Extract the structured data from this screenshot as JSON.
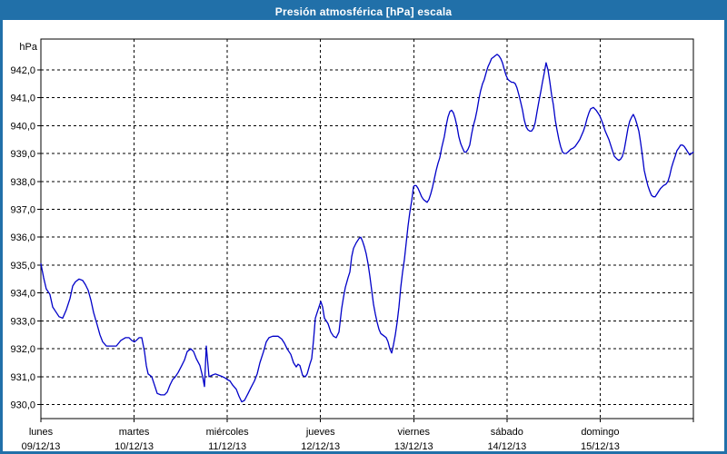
{
  "window": {
    "title": "Presión atmosférica [hPa] escala"
  },
  "colors": {
    "titlebar": "#2170a9",
    "title_text": "#ffffff",
    "window_border": "#2170a9",
    "plot_border": "#000000",
    "grid": "#000000",
    "line": "#0000c8",
    "background": "#ffffff",
    "label": "#000000"
  },
  "chart_data": {
    "type": "line",
    "title": "Presión atmosférica [hPa] escala",
    "unit_label": "hPa",
    "xlabel": "",
    "ylabel": "hPa",
    "grid": true,
    "legend": "none",
    "ylim": [
      929.5,
      943.1
    ],
    "yticks": [
      930,
      931,
      932,
      933,
      934,
      935,
      936,
      937,
      938,
      939,
      940,
      941,
      942
    ],
    "ytick_labels": [
      "930,0",
      "931,0",
      "932,0",
      "933,0",
      "934,0",
      "935,0",
      "936,0",
      "937,0",
      "938,0",
      "939,0",
      "940,0",
      "941,0",
      "942,0"
    ],
    "xlim_days": [
      0,
      7
    ],
    "days": [
      {
        "name": "lunes",
        "date": "09/12/13"
      },
      {
        "name": "martes",
        "date": "10/12/13"
      },
      {
        "name": "miércoles",
        "date": "11/12/13"
      },
      {
        "name": "jueves",
        "date": "12/12/13"
      },
      {
        "name": "viernes",
        "date": "13/12/13"
      },
      {
        "name": "sábado",
        "date": "14/12/13"
      },
      {
        "name": "domingo",
        "date": "15/12/13"
      }
    ],
    "series": [
      {
        "name": "Presión atmosférica",
        "color": "#0000c8",
        "points": [
          [
            0.0,
            935.05
          ],
          [
            0.029,
            934.55
          ],
          [
            0.058,
            934.15
          ],
          [
            0.097,
            933.95
          ],
          [
            0.127,
            933.5
          ],
          [
            0.156,
            933.35
          ],
          [
            0.195,
            933.15
          ],
          [
            0.234,
            933.1
          ],
          [
            0.273,
            933.4
          ],
          [
            0.312,
            933.8
          ],
          [
            0.341,
            934.25
          ],
          [
            0.37,
            934.4
          ],
          [
            0.409,
            934.5
          ],
          [
            0.448,
            934.45
          ],
          [
            0.478,
            934.3
          ],
          [
            0.507,
            934.1
          ],
          [
            0.536,
            933.75
          ],
          [
            0.565,
            933.3
          ],
          [
            0.604,
            932.85
          ],
          [
            0.634,
            932.5
          ],
          [
            0.663,
            932.25
          ],
          [
            0.702,
            932.1
          ],
          [
            0.76,
            932.1
          ],
          [
            0.809,
            932.1
          ],
          [
            0.858,
            932.3
          ],
          [
            0.907,
            932.4
          ],
          [
            0.946,
            932.4
          ],
          [
            0.975,
            932.3
          ],
          [
            1.004,
            932.25
          ],
          [
            1.024,
            932.3
          ],
          [
            1.053,
            932.4
          ],
          [
            1.082,
            932.4
          ],
          [
            1.111,
            931.9
          ],
          [
            1.131,
            931.4
          ],
          [
            1.15,
            931.1
          ],
          [
            1.189,
            931.0
          ],
          [
            1.219,
            930.7
          ],
          [
            1.248,
            930.4
          ],
          [
            1.287,
            930.35
          ],
          [
            1.326,
            930.35
          ],
          [
            1.355,
            930.45
          ],
          [
            1.384,
            930.7
          ],
          [
            1.414,
            930.9
          ],
          [
            1.443,
            931.0
          ],
          [
            1.472,
            931.15
          ],
          [
            1.511,
            931.4
          ],
          [
            1.54,
            931.6
          ],
          [
            1.57,
            931.9
          ],
          [
            1.609,
            932.0
          ],
          [
            1.638,
            931.9
          ],
          [
            1.667,
            931.65
          ],
          [
            1.706,
            931.4
          ],
          [
            1.735,
            931.0
          ],
          [
            1.755,
            930.65
          ],
          [
            1.774,
            932.1
          ],
          [
            1.804,
            931.0
          ],
          [
            1.833,
            931.05
          ],
          [
            1.872,
            931.1
          ],
          [
            1.911,
            931.05
          ],
          [
            1.95,
            931.0
          ],
          [
            1.979,
            930.95
          ],
          [
            1.999,
            930.9
          ],
          [
            2.028,
            930.85
          ],
          [
            2.057,
            930.7
          ],
          [
            2.096,
            930.55
          ],
          [
            2.125,
            930.3
          ],
          [
            2.155,
            930.1
          ],
          [
            2.184,
            930.15
          ],
          [
            2.223,
            930.4
          ],
          [
            2.252,
            930.6
          ],
          [
            2.291,
            930.85
          ],
          [
            2.32,
            931.1
          ],
          [
            2.35,
            931.5
          ],
          [
            2.389,
            931.9
          ],
          [
            2.418,
            932.25
          ],
          [
            2.447,
            932.4
          ],
          [
            2.486,
            932.45
          ],
          [
            2.515,
            932.45
          ],
          [
            2.545,
            932.45
          ],
          [
            2.584,
            932.35
          ],
          [
            2.613,
            932.2
          ],
          [
            2.642,
            932.0
          ],
          [
            2.681,
            931.8
          ],
          [
            2.71,
            931.5
          ],
          [
            2.74,
            931.35
          ],
          [
            2.759,
            931.45
          ],
          [
            2.779,
            931.4
          ],
          [
            2.808,
            931.05
          ],
          [
            2.837,
            931.0
          ],
          [
            2.857,
            931.1
          ],
          [
            2.886,
            931.45
          ],
          [
            2.905,
            931.65
          ],
          [
            2.925,
            932.3
          ],
          [
            2.944,
            933.1
          ],
          [
            2.964,
            933.3
          ],
          [
            2.983,
            933.5
          ],
          [
            3.003,
            933.7
          ],
          [
            3.022,
            933.5
          ],
          [
            3.042,
            933.1
          ],
          [
            3.061,
            933.0
          ],
          [
            3.081,
            932.9
          ],
          [
            3.11,
            932.6
          ],
          [
            3.139,
            932.45
          ],
          [
            3.169,
            932.4
          ],
          [
            3.198,
            932.6
          ],
          [
            3.227,
            933.45
          ],
          [
            3.247,
            933.85
          ],
          [
            3.266,
            934.2
          ],
          [
            3.295,
            934.55
          ],
          [
            3.315,
            934.75
          ],
          [
            3.334,
            935.3
          ],
          [
            3.354,
            935.6
          ],
          [
            3.383,
            935.8
          ],
          [
            3.412,
            935.95
          ],
          [
            3.432,
            936.0
          ],
          [
            3.451,
            935.85
          ],
          [
            3.471,
            935.65
          ],
          [
            3.49,
            935.4
          ],
          [
            3.51,
            935.05
          ],
          [
            3.529,
            934.6
          ],
          [
            3.549,
            934.1
          ],
          [
            3.568,
            933.6
          ],
          [
            3.588,
            933.25
          ],
          [
            3.607,
            932.95
          ],
          [
            3.627,
            932.7
          ],
          [
            3.646,
            932.55
          ],
          [
            3.666,
            932.5
          ],
          [
            3.685,
            932.45
          ],
          [
            3.705,
            932.4
          ],
          [
            3.724,
            932.25
          ],
          [
            3.744,
            932.0
          ],
          [
            3.763,
            931.85
          ],
          [
            3.783,
            932.15
          ],
          [
            3.802,
            932.5
          ],
          [
            3.822,
            932.95
          ],
          [
            3.841,
            933.5
          ],
          [
            3.861,
            934.2
          ],
          [
            3.88,
            934.75
          ],
          [
            3.9,
            935.2
          ],
          [
            3.919,
            935.8
          ],
          [
            3.939,
            936.4
          ],
          [
            3.958,
            936.9
          ],
          [
            3.978,
            937.3
          ],
          [
            3.997,
            937.8
          ],
          [
            4.007,
            937.85
          ],
          [
            4.026,
            937.85
          ],
          [
            4.046,
            937.75
          ],
          [
            4.065,
            937.6
          ],
          [
            4.085,
            937.45
          ],
          [
            4.104,
            937.35
          ],
          [
            4.124,
            937.3
          ],
          [
            4.143,
            937.25
          ],
          [
            4.163,
            937.35
          ],
          [
            4.182,
            937.55
          ],
          [
            4.202,
            937.8
          ],
          [
            4.221,
            938.1
          ],
          [
            4.241,
            938.4
          ],
          [
            4.26,
            938.65
          ],
          [
            4.28,
            938.85
          ],
          [
            4.299,
            939.2
          ],
          [
            4.328,
            939.6
          ],
          [
            4.348,
            940.0
          ],
          [
            4.367,
            940.3
          ],
          [
            4.387,
            940.5
          ],
          [
            4.406,
            940.55
          ],
          [
            4.426,
            940.45
          ],
          [
            4.445,
            940.25
          ],
          [
            4.465,
            939.95
          ],
          [
            4.484,
            939.6
          ],
          [
            4.504,
            939.35
          ],
          [
            4.523,
            939.2
          ],
          [
            4.543,
            939.05
          ],
          [
            4.562,
            939.05
          ],
          [
            4.582,
            939.15
          ],
          [
            4.601,
            939.3
          ],
          [
            4.621,
            939.7
          ],
          [
            4.64,
            940.0
          ],
          [
            4.66,
            940.25
          ],
          [
            4.679,
            940.55
          ],
          [
            4.699,
            940.95
          ],
          [
            4.718,
            941.25
          ],
          [
            4.738,
            941.5
          ],
          [
            4.757,
            941.65
          ],
          [
            4.777,
            941.9
          ],
          [
            4.796,
            942.1
          ],
          [
            4.816,
            942.25
          ],
          [
            4.835,
            942.4
          ],
          [
            4.855,
            942.45
          ],
          [
            4.874,
            942.5
          ],
          [
            4.894,
            942.55
          ],
          [
            4.913,
            942.5
          ],
          [
            4.933,
            942.4
          ],
          [
            4.952,
            942.25
          ],
          [
            4.972,
            942.0
          ],
          [
            4.991,
            941.8
          ],
          [
            5.011,
            941.65
          ],
          [
            5.03,
            941.6
          ],
          [
            5.05,
            941.55
          ],
          [
            5.069,
            941.55
          ],
          [
            5.089,
            941.5
          ],
          [
            5.108,
            941.35
          ],
          [
            5.128,
            941.1
          ],
          [
            5.147,
            940.85
          ],
          [
            5.167,
            940.55
          ],
          [
            5.186,
            940.2
          ],
          [
            5.206,
            939.95
          ],
          [
            5.225,
            939.85
          ],
          [
            5.245,
            939.8
          ],
          [
            5.264,
            939.8
          ],
          [
            5.284,
            939.9
          ],
          [
            5.303,
            940.1
          ],
          [
            5.323,
            940.5
          ],
          [
            5.342,
            940.85
          ],
          [
            5.362,
            941.2
          ],
          [
            5.381,
            941.55
          ],
          [
            5.401,
            941.9
          ],
          [
            5.42,
            942.25
          ],
          [
            5.44,
            942.0
          ],
          [
            5.459,
            941.6
          ],
          [
            5.479,
            941.1
          ],
          [
            5.498,
            940.75
          ],
          [
            5.518,
            940.2
          ],
          [
            5.537,
            939.85
          ],
          [
            5.557,
            939.5
          ],
          [
            5.576,
            939.25
          ],
          [
            5.596,
            939.05
          ],
          [
            5.615,
            939.0
          ],
          [
            5.635,
            939.0
          ],
          [
            5.654,
            939.05
          ],
          [
            5.684,
            939.15
          ],
          [
            5.713,
            939.2
          ],
          [
            5.732,
            939.25
          ],
          [
            5.762,
            939.4
          ],
          [
            5.781,
            939.5
          ],
          [
            5.801,
            939.65
          ],
          [
            5.82,
            939.8
          ],
          [
            5.84,
            940.0
          ],
          [
            5.859,
            940.25
          ],
          [
            5.879,
            940.45
          ],
          [
            5.898,
            940.6
          ],
          [
            5.928,
            940.65
          ],
          [
            5.957,
            940.55
          ],
          [
            5.976,
            940.45
          ],
          [
            5.996,
            940.35
          ],
          [
            6.025,
            940.1
          ],
          [
            6.054,
            939.8
          ],
          [
            6.093,
            939.5
          ],
          [
            6.123,
            939.2
          ],
          [
            6.152,
            938.9
          ],
          [
            6.181,
            938.8
          ],
          [
            6.201,
            938.75
          ],
          [
            6.22,
            938.8
          ],
          [
            6.239,
            938.9
          ],
          [
            6.259,
            939.15
          ],
          [
            6.278,
            939.5
          ],
          [
            6.298,
            939.9
          ],
          [
            6.317,
            940.15
          ],
          [
            6.337,
            940.3
          ],
          [
            6.356,
            940.4
          ],
          [
            6.376,
            940.25
          ],
          [
            6.395,
            940.05
          ],
          [
            6.415,
            939.8
          ],
          [
            6.434,
            939.4
          ],
          [
            6.454,
            938.9
          ],
          [
            6.473,
            938.4
          ],
          [
            6.493,
            938.1
          ],
          [
            6.512,
            937.85
          ],
          [
            6.532,
            937.65
          ],
          [
            6.551,
            937.5
          ],
          [
            6.571,
            937.45
          ],
          [
            6.59,
            937.45
          ],
          [
            6.61,
            937.55
          ],
          [
            6.629,
            937.65
          ],
          [
            6.649,
            937.75
          ],
          [
            6.678,
            937.85
          ],
          [
            6.707,
            937.9
          ],
          [
            6.727,
            938.0
          ],
          [
            6.746,
            938.2
          ],
          [
            6.766,
            938.5
          ],
          [
            6.785,
            938.7
          ],
          [
            6.805,
            938.9
          ],
          [
            6.824,
            939.1
          ],
          [
            6.844,
            939.2
          ],
          [
            6.863,
            939.3
          ],
          [
            6.883,
            939.3
          ],
          [
            6.902,
            939.25
          ],
          [
            6.922,
            939.15
          ],
          [
            6.941,
            939.05
          ],
          [
            6.961,
            938.95
          ],
          [
            6.98,
            939.0
          ],
          [
            7.0,
            939.05
          ]
        ]
      }
    ]
  }
}
